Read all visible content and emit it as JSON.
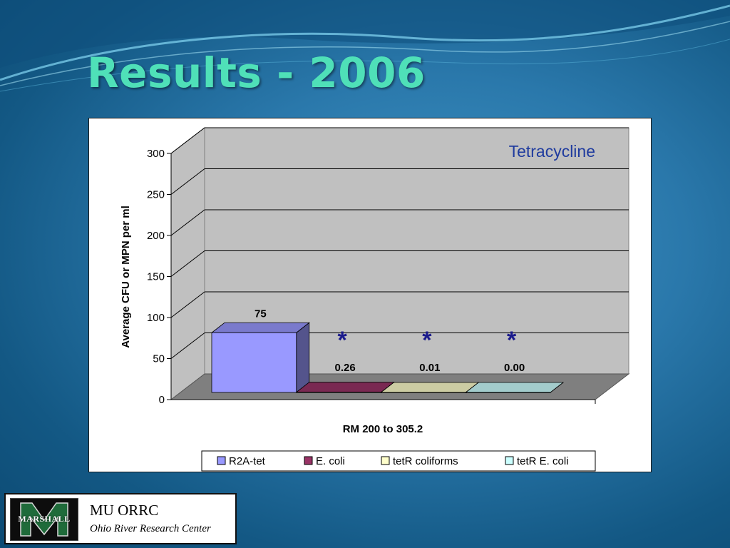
{
  "slide": {
    "title": "Results - 2006"
  },
  "chart_data": {
    "type": "bar",
    "style": "3d",
    "annotation": "Tetracycline",
    "categories": [
      "RM 200 to 305.2"
    ],
    "xlabel": "RM 200 to 305.2",
    "ylabel": "Average CFU or MPN per ml",
    "ylim": [
      0,
      300
    ],
    "yticks": [
      0,
      50,
      100,
      150,
      200,
      250,
      300
    ],
    "grid": true,
    "legend_position": "bottom",
    "series": [
      {
        "name": "R2A-tet",
        "values": [
          75
        ],
        "label": "75",
        "color": "#9999ff",
        "marker": ""
      },
      {
        "name": "E. coli",
        "values": [
          0.26
        ],
        "label": "0.26",
        "color": "#993366",
        "marker": "*"
      },
      {
        "name": "tetR coliforms",
        "values": [
          0.01
        ],
        "label": "0.01",
        "color": "#ffffcc",
        "marker": "*"
      },
      {
        "name": "tetR E. coli",
        "values": [
          0.0
        ],
        "label": "0.00",
        "color": "#ccffff",
        "marker": "*"
      }
    ],
    "annotation_color": "#1f3b9e",
    "marker_color": "#1a1a8c"
  },
  "logo": {
    "wordmark": "MARSHALL",
    "title": "MU ORRC",
    "subtitle": "Ohio River Research Center"
  }
}
